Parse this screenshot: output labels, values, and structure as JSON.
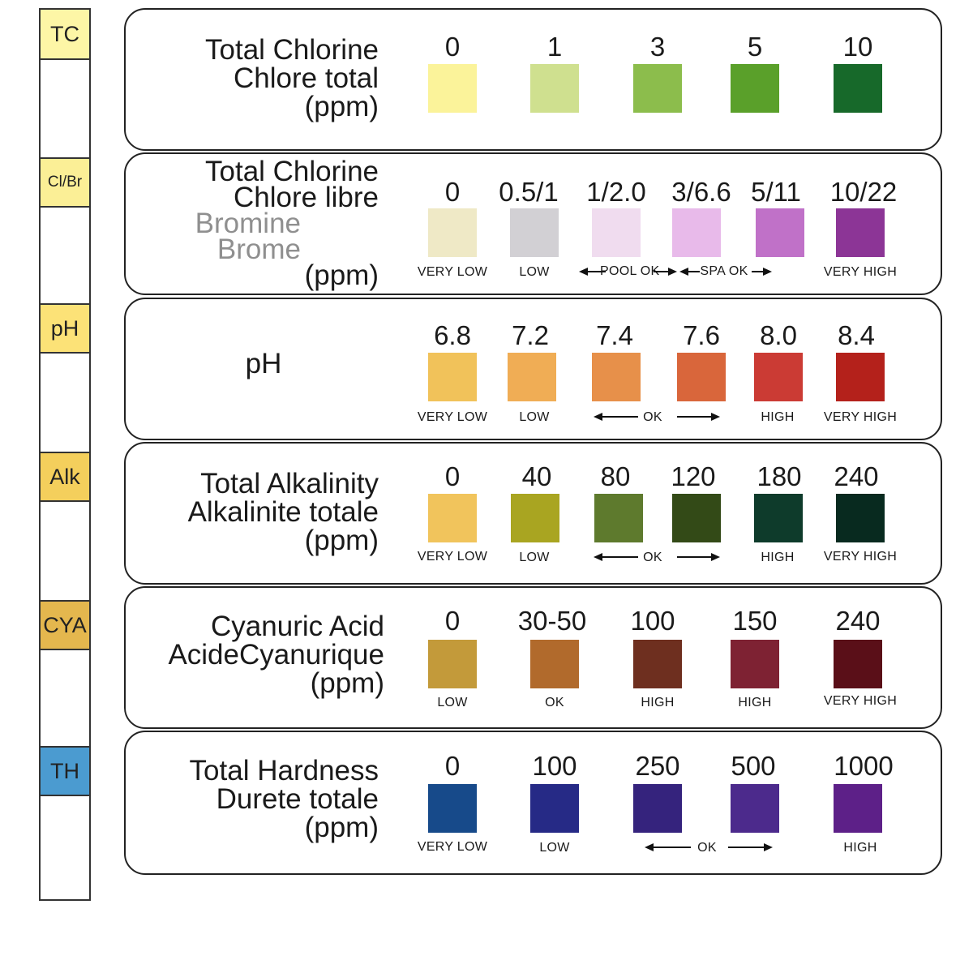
{
  "strip": {
    "pads": [
      {
        "label": "TC",
        "color": "#fdf6a6"
      },
      {
        "label": "Cl/Br",
        "color": "#fbef96"
      },
      {
        "label": "pH",
        "color": "#fce277"
      },
      {
        "label": "Alk",
        "color": "#f4cf5c"
      },
      {
        "label": "CYA",
        "color": "#e4b74e"
      },
      {
        "label": "TH",
        "color": "#4b9bd0"
      }
    ]
  },
  "panels": [
    {
      "id": "total-chlorine",
      "label_lines": [
        "Total Chlorine",
        "Chlore total",
        "(ppm)"
      ],
      "values": [
        "0",
        "1",
        "3",
        "5",
        "10"
      ],
      "colors": [
        "#fbf39a",
        "#cfe08f",
        "#8cbd4c",
        "#5aa02a",
        "#17692a"
      ],
      "tags": []
    },
    {
      "id": "chlorine-bromine",
      "label_lines": [
        "Total Chlorine",
        "Chlore libre",
        "Bromine",
        "Brome",
        "(ppm)"
      ],
      "values": [
        "0",
        "0.5/1",
        "1/2.0",
        "3/6.6",
        "5/11",
        "10/22"
      ],
      "colors": [
        "#efe9c6",
        "#d2d0d4",
        "#f0dcef",
        "#e8baea",
        "#c071c8",
        "#8c3596"
      ],
      "tags": [
        "VERY LOW",
        "LOW",
        "POOL OK",
        "SPA OK",
        "VERY HIGH"
      ]
    },
    {
      "id": "ph",
      "label_lines": [
        "pH"
      ],
      "values": [
        "6.8",
        "7.2",
        "7.4",
        "7.6",
        "8.0",
        "8.4"
      ],
      "colors": [
        "#f1c25a",
        "#f0ad55",
        "#e7904a",
        "#d9663b",
        "#cb3b34",
        "#b4211b"
      ],
      "tags": [
        "VERY LOW",
        "LOW",
        "OK",
        "HIGH",
        "VERY HIGH"
      ]
    },
    {
      "id": "total-alkalinity",
      "label_lines": [
        "Total Alkalinity",
        "Alkalinite totale",
        "(ppm)"
      ],
      "values": [
        "0",
        "40",
        "80",
        "120",
        "180",
        "240"
      ],
      "colors": [
        "#f1c45c",
        "#a9a521",
        "#5e7a2d",
        "#334a17",
        "#0e3b2b",
        "#082a1f"
      ],
      "tags": [
        "VERY LOW",
        "LOW",
        "OK",
        "HIGH",
        "VERY HIGH"
      ]
    },
    {
      "id": "cyanuric-acid",
      "label_lines": [
        "Cyanuric Acid",
        "AcideCyanurique",
        "(ppm)"
      ],
      "values": [
        "0",
        "30-50",
        "100",
        "150",
        "240"
      ],
      "colors": [
        "#c39a3a",
        "#b16a2c",
        "#6e2f1f",
        "#7e2233",
        "#5a0f18"
      ],
      "tags": [
        "LOW",
        "OK",
        "HIGH",
        "HIGH",
        "VERY HIGH"
      ]
    },
    {
      "id": "total-hardness",
      "label_lines": [
        "Total Hardness",
        "Durete totale",
        "(ppm)"
      ],
      "values": [
        "0",
        "100",
        "250",
        "500",
        "1000"
      ],
      "colors": [
        "#174a8a",
        "#262a86",
        "#35237d",
        "#4c2a8c",
        "#5d2088"
      ],
      "tags": [
        "VERY LOW",
        "LOW",
        "OK",
        "HIGH"
      ]
    }
  ]
}
